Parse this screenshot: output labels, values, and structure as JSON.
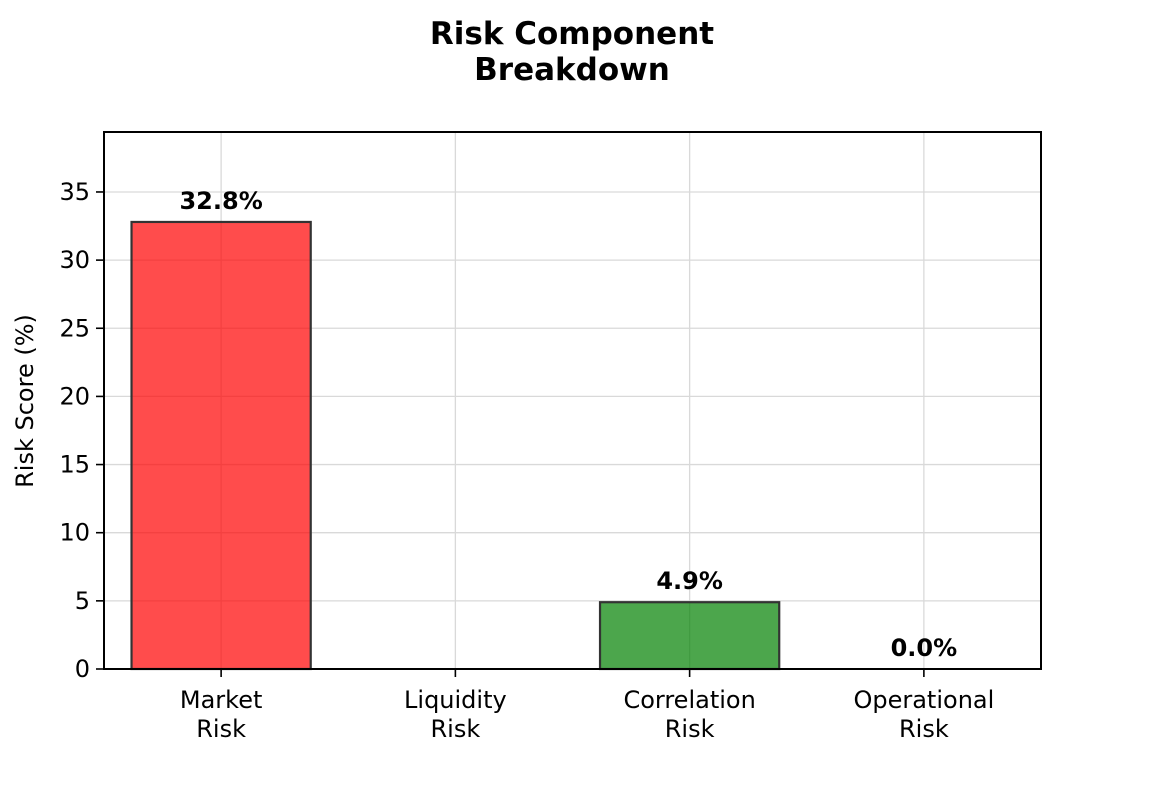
{
  "chart_data": {
    "type": "bar",
    "title": [
      "Risk Component",
      "Breakdown"
    ],
    "xlabel": "",
    "ylabel": "Risk Score (%)",
    "ylim": [
      0,
      39.4
    ],
    "yticks": [
      0,
      5,
      10,
      15,
      20,
      25,
      30,
      35
    ],
    "grid": true,
    "categories": [
      [
        "Market",
        "Risk"
      ],
      [
        "Liquidity",
        "Risk"
      ],
      [
        "Correlation",
        "Risk"
      ],
      [
        "Operational",
        "Risk"
      ]
    ],
    "values": [
      32.8,
      0.0,
      4.9,
      0.0
    ],
    "data_labels": [
      "32.8%",
      "",
      "4.9%",
      "0.0%"
    ],
    "colors": [
      "#ff0000",
      "#ffa500",
      "#008000",
      "#0000ff"
    ]
  }
}
